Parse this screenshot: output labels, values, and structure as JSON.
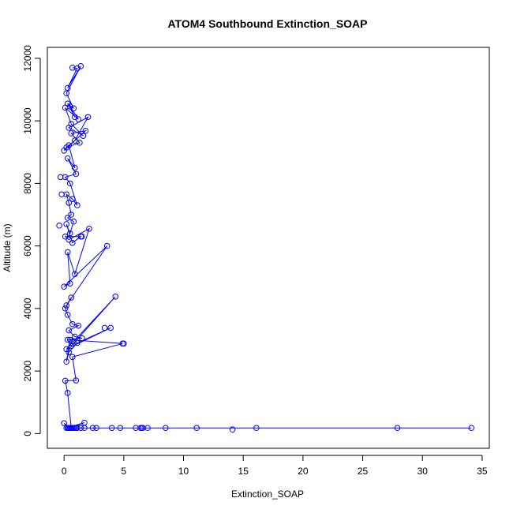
{
  "chart_data": {
    "type": "line",
    "title": "ATOM4 Southbound Extinction_SOAP",
    "xlabel": "Extinction_SOAP",
    "ylabel": "Altitude (m)",
    "xlim": [
      -1.4,
      35.6
    ],
    "ylim": [
      -470,
      12350
    ],
    "x_ticks": [
      0,
      5,
      10,
      15,
      20,
      25,
      30,
      35
    ],
    "y_ticks": [
      0,
      2000,
      4000,
      6000,
      8000,
      10000,
      12000
    ],
    "grid": false,
    "legend": "none",
    "line_color": "#0000ff",
    "marker": "open-circle",
    "series": [
      {
        "x": [
          0.7,
          1.1,
          0.3,
          1.4,
          0.2,
          0.8,
          0.3,
          0.9,
          0.5,
          1.2,
          0.1,
          0.6,
          1.6,
          0.4,
          2.0,
          0.9,
          0.2,
          1.3,
          0.6,
          1.8,
          0.0,
          0.4,
          0.9,
          0.3,
          1.0,
          0.1,
          0.5,
          1.1,
          0.7,
          0.2,
          0.4,
          0.6,
          0.3,
          0.8,
          0.5,
          0.2,
          0.7,
          1.4,
          0.1,
          0.4,
          2.1,
          0.9,
          0.3,
          0.5,
          0.0,
          3.6,
          0.2,
          0.6,
          0.1,
          0.3,
          0.7,
          1.2,
          0.4,
          0.9,
          1.5,
          0.3,
          0.6,
          4.3,
          0.8,
          0.2,
          3.9,
          1.1,
          0.4,
          0.2,
          0.5,
          4.9,
          0.7,
          1.0,
          0.1,
          0.3,
          0.6,
          1.4,
          0.9,
          0.3,
          0.0,
          0.5,
          1.7,
          0.2,
          1.1,
          0.4,
          16.1,
          0.8,
          0.3,
          6.5,
          0.4,
          1.0,
          27.9,
          0.5,
          8.5,
          0.7,
          11.1,
          1.1,
          34.1
        ],
        "y": [
          11700,
          11680,
          11050,
          11750,
          10880,
          10400,
          10550,
          10120,
          10460,
          10050,
          10420,
          9900,
          9520,
          9780,
          10120,
          9370,
          9150,
          9300,
          9600,
          9680,
          9050,
          9220,
          8500,
          8800,
          8300,
          8200,
          8000,
          7300,
          7500,
          7650,
          7380,
          7000,
          6900,
          6780,
          6400,
          6700,
          6100,
          6300,
          6300,
          6200,
          6550,
          5100,
          5800,
          4800,
          4700,
          6000,
          4100,
          4350,
          4000,
          3800,
          3500,
          3450,
          3300,
          3100,
          3050,
          3000,
          2800,
          4380,
          2950,
          2700,
          3380,
          2900,
          2600,
          2300,
          3000,
          2880,
          2450,
          1700,
          1690,
          1300,
          180,
          180,
          180,
          180,
          330,
          180,
          350,
          180,
          180,
          180,
          180,
          180,
          180,
          180,
          180,
          180,
          180,
          180,
          180,
          180,
          180,
          180,
          180
        ]
      }
    ],
    "extra_markers": [
      {
        "x": 1.7,
        "y": 180
      },
      {
        "x": 2.4,
        "y": 180
      },
      {
        "x": 2.7,
        "y": 180
      },
      {
        "x": 4.0,
        "y": 180
      },
      {
        "x": 4.7,
        "y": 180
      },
      {
        "x": 6.0,
        "y": 180
      },
      {
        "x": 6.4,
        "y": 180
      },
      {
        "x": 6.6,
        "y": 180
      },
      {
        "x": 7.0,
        "y": 180
      },
      {
        "x": 14.1,
        "y": 130
      },
      {
        "x": -0.3,
        "y": 8200
      },
      {
        "x": -0.2,
        "y": 7650
      },
      {
        "x": -0.4,
        "y": 6650
      },
      {
        "x": 3.4,
        "y": 3380
      },
      {
        "x": 5.0,
        "y": 2880
      },
      {
        "x": 1.5,
        "y": 6300
      }
    ]
  }
}
